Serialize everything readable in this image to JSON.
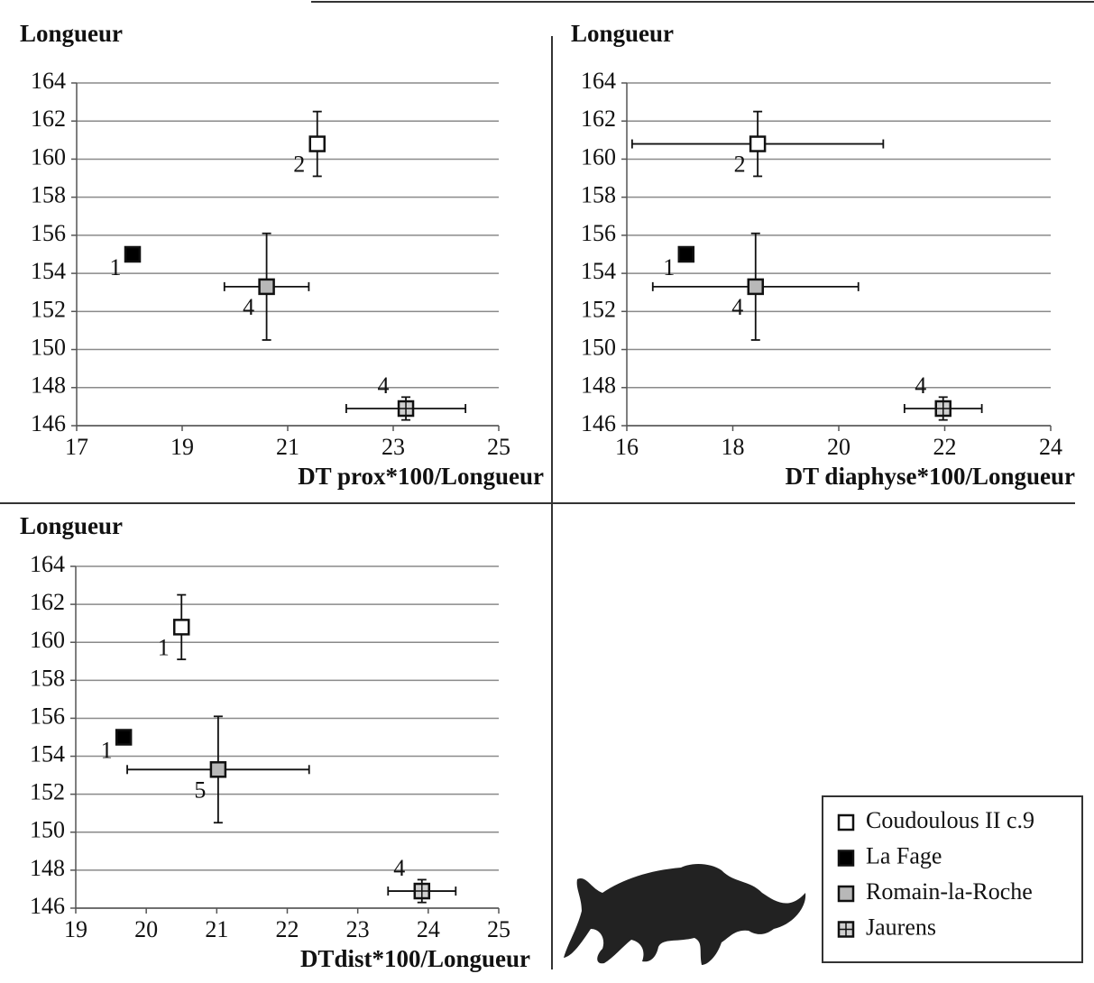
{
  "chart_data": [
    {
      "type": "scatter",
      "y_label": "Longueur",
      "x_label": "DT prox*100/Longueur",
      "xlim": [
        17,
        25
      ],
      "xticks": [
        17,
        19,
        21,
        23,
        25
      ],
      "ylim": [
        146,
        164
      ],
      "yticks": [
        146,
        148,
        150,
        152,
        154,
        156,
        158,
        160,
        162,
        164
      ],
      "grid": true,
      "series": [
        {
          "x": [
            21.56
          ],
          "values": [
            160.8
          ],
          "x_err": [
            null
          ],
          "y_err": [
            1.7
          ],
          "n": [
            2
          ]
        },
        {
          "x": [
            18.06
          ],
          "values": [
            155.0
          ],
          "x_err": [
            null
          ],
          "y_err": [
            null
          ],
          "n": [
            1
          ]
        },
        {
          "x": [
            20.6
          ],
          "values": [
            153.3
          ],
          "x_err": [
            0.8
          ],
          "y_err": [
            2.8
          ],
          "n": [
            4
          ]
        },
        {
          "x": [
            23.24
          ],
          "values": [
            146.9
          ],
          "x_err": [
            1.13
          ],
          "y_err": [
            0.6
          ],
          "n": [
            4
          ]
        }
      ]
    },
    {
      "type": "scatter",
      "y_label": "Longueur",
      "x_label": "DT diaphyse*100/Longueur",
      "xlim": [
        16,
        24
      ],
      "xticks": [
        16,
        18,
        20,
        22,
        24
      ],
      "ylim": [
        146,
        164
      ],
      "yticks": [
        146,
        148,
        150,
        152,
        154,
        156,
        158,
        160,
        162,
        164
      ],
      "grid": true,
      "series": [
        {
          "x": [
            18.47
          ],
          "values": [
            160.8
          ],
          "x_err": [
            2.37
          ],
          "y_err": [
            1.7
          ],
          "n": [
            2
          ]
        },
        {
          "x": [
            17.12
          ],
          "values": [
            155.0
          ],
          "x_err": [
            null
          ],
          "y_err": [
            null
          ],
          "n": [
            1
          ]
        },
        {
          "x": [
            18.43
          ],
          "values": [
            153.3
          ],
          "x_err": [
            1.94
          ],
          "y_err": [
            2.8
          ],
          "n": [
            4
          ]
        },
        {
          "x": [
            21.97
          ],
          "values": [
            146.9
          ],
          "x_err": [
            0.73
          ],
          "y_err": [
            0.6
          ],
          "n": [
            4
          ]
        }
      ]
    },
    {
      "type": "scatter",
      "y_label": "Longueur",
      "x_label": "DTdist*100/Longueur",
      "xlim": [
        19,
        25
      ],
      "xticks": [
        19,
        20,
        21,
        22,
        23,
        24,
        25
      ],
      "ylim": [
        146,
        164
      ],
      "yticks": [
        146,
        148,
        150,
        152,
        154,
        156,
        158,
        160,
        162,
        164
      ],
      "grid": true,
      "series": [
        {
          "x": [
            20.5
          ],
          "values": [
            160.8
          ],
          "x_err": [
            null
          ],
          "y_err": [
            1.7
          ],
          "n": [
            1
          ]
        },
        {
          "x": [
            19.68
          ],
          "values": [
            155.0
          ],
          "x_err": [
            null
          ],
          "y_err": [
            null
          ],
          "n": [
            1
          ]
        },
        {
          "x": [
            21.02
          ],
          "values": [
            153.3
          ],
          "x_err": [
            1.29
          ],
          "y_err": [
            2.8
          ],
          "n": [
            5
          ]
        },
        {
          "x": [
            23.91
          ],
          "values": [
            146.9
          ],
          "x_err": [
            0.48
          ],
          "y_err": [
            0.6
          ],
          "n": [
            4
          ]
        }
      ]
    }
  ],
  "legend": [
    {
      "name": "Coudoulous II c.9",
      "color": "#ffffff"
    },
    {
      "name": "La Fage",
      "color": "#000000"
    },
    {
      "name": "Romain-la-Roche",
      "color": "#b8b8b8"
    },
    {
      "name": "Jaurens",
      "color": "#d0d0d0",
      "pattern": "grid"
    }
  ]
}
